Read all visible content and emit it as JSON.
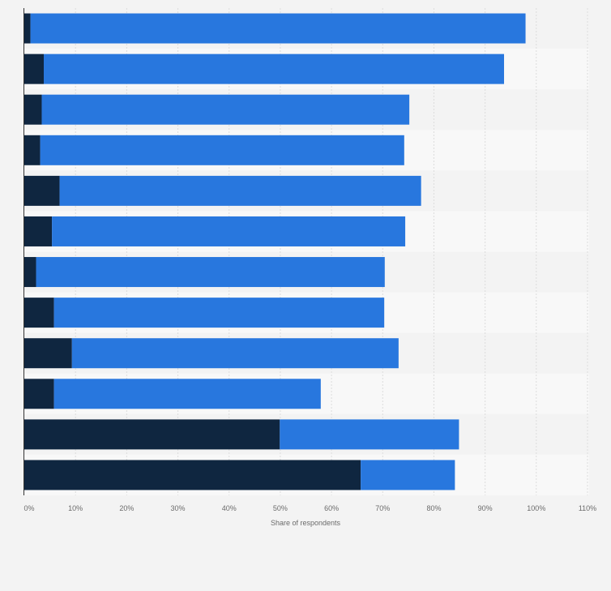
{
  "chart_data": {
    "type": "bar",
    "orientation": "horizontal",
    "stacked": true,
    "title": "",
    "xlabel": "Share of respondents",
    "ylabel": "",
    "xlim": [
      0,
      110
    ],
    "x_ticks": [
      0,
      10,
      20,
      30,
      40,
      50,
      60,
      70,
      80,
      90,
      100,
      110
    ],
    "x_tick_labels": [
      "0%",
      "10%",
      "20%",
      "30%",
      "40%",
      "50%",
      "60%",
      "70%",
      "80%",
      "90%",
      "100%",
      "110%"
    ],
    "categories": [
      "",
      "",
      "",
      "",
      "",
      "",
      "",
      "",
      "",
      "",
      "",
      ""
    ],
    "series": [
      {
        "name": "",
        "color": "#0f2640",
        "values": [
          1.2,
          3.8,
          3.4,
          3.1,
          6.9,
          5.4,
          2.3,
          5.8,
          9.3,
          5.8,
          49.9,
          65.7
        ]
      },
      {
        "name": "",
        "color": "#2877de",
        "values": [
          96.7,
          89.9,
          71.8,
          71.1,
          70.6,
          69.0,
          68.1,
          64.5,
          63.8,
          52.1,
          35.0,
          18.4
        ]
      }
    ],
    "grid": true,
    "legend": "none"
  }
}
